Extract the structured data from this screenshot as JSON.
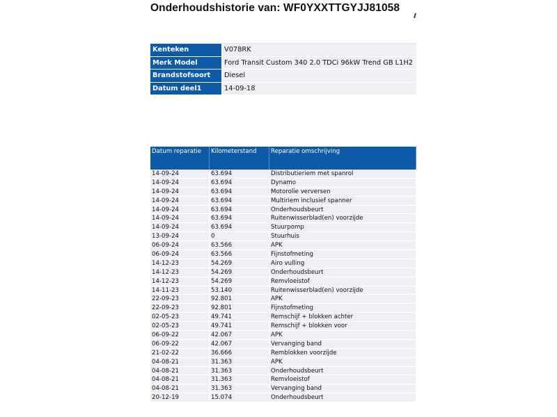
{
  "header": {
    "title": "Onderhoudshistorie van: WF0YXXTTGYJJ81058"
  },
  "vehicle": [
    {
      "label": "Kenteken",
      "value": "V078RK"
    },
    {
      "label": "Merk Model",
      "value": "Ford Transit Custom 340 2.0 TDCi 96kW Trend GB L1H2"
    },
    {
      "label": "Brandstofsoort",
      "value": "Diesel"
    },
    {
      "label": "Datum deel1",
      "value": "14-09-18"
    }
  ],
  "history": {
    "columns": [
      "Datum reparatie",
      "Kilometerstand",
      "Reparatie omschrijving"
    ],
    "rows": [
      [
        "14-09-24",
        "63.694",
        "Distributieriem met spanrol"
      ],
      [
        "14-09-24",
        "63.694",
        "Dynamo"
      ],
      [
        "14-09-24",
        "63.694",
        "Motorolie verversen"
      ],
      [
        "14-09-24",
        "63.694",
        "Multiriem inclusief spanner"
      ],
      [
        "14-09-24",
        "63.694",
        "Onderhoudsbeurt"
      ],
      [
        "14-09-24",
        "63.694",
        "Ruitenwisserblad(en) voorzijde"
      ],
      [
        "14-09-24",
        "63.694",
        "Stuurpomp"
      ],
      [
        "13-09-24",
        "0",
        "Stuurhuis"
      ],
      [
        "06-09-24",
        "63.566",
        "APK"
      ],
      [
        "06-09-24",
        "63.566",
        "Fijnstofmeting"
      ],
      [
        "14-12-23",
        "54.269",
        "Airo vulling"
      ],
      [
        "14-12-23",
        "54.269",
        "Onderhoudsbeurt"
      ],
      [
        "14-12-23",
        "54.269",
        "Remvloeistof"
      ],
      [
        "14-11-23",
        "53.140",
        "Ruitenwisserblad(en) voorzijde"
      ],
      [
        "22-09-23",
        "92.801",
        "APK"
      ],
      [
        "22-09-23",
        "92.801",
        "Fijnstofmeting"
      ],
      [
        "02-05-23",
        "49.741",
        "Remschijf + blokken achter"
      ],
      [
        "02-05-23",
        "49.741",
        "Remschijf + blokken voor"
      ],
      [
        "06-09-22",
        "42.067",
        "APK"
      ],
      [
        "06-09-22",
        "42.067",
        "Vervanging band"
      ],
      [
        "21-02-22",
        "36.666",
        "Remblokken voorzijde"
      ],
      [
        "04-08-21",
        "31.363",
        "APK"
      ],
      [
        "04-08-21",
        "31.363",
        "Onderhoudsbeurt"
      ],
      [
        "04-08-21",
        "31.363",
        "Remvloeistof"
      ],
      [
        "04-08-21",
        "31.363",
        "Vervanging band"
      ],
      [
        "20-12-19",
        "15.074",
        "Onderhoudsbeurt"
      ]
    ]
  },
  "colors": {
    "header_blue": "#0c5aa8",
    "row_bg": "#eeeef3"
  }
}
